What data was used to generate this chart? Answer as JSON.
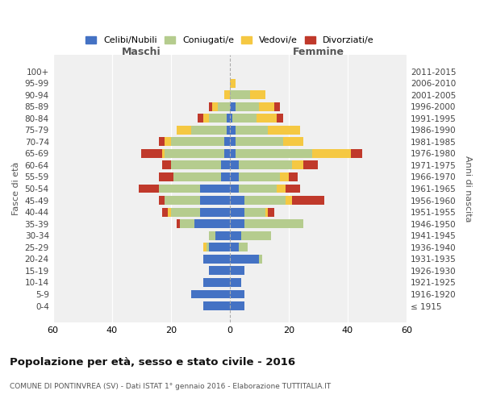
{
  "age_groups": [
    "100+",
    "95-99",
    "90-94",
    "85-89",
    "80-84",
    "75-79",
    "70-74",
    "65-69",
    "60-64",
    "55-59",
    "50-54",
    "45-49",
    "40-44",
    "35-39",
    "30-34",
    "25-29",
    "20-24",
    "15-19",
    "10-14",
    "5-9",
    "0-4"
  ],
  "birth_years": [
    "≤ 1915",
    "1916-1920",
    "1921-1925",
    "1926-1930",
    "1931-1935",
    "1936-1940",
    "1941-1945",
    "1946-1950",
    "1951-1955",
    "1956-1960",
    "1961-1965",
    "1966-1970",
    "1971-1975",
    "1976-1980",
    "1981-1985",
    "1986-1990",
    "1991-1995",
    "1996-2000",
    "2001-2005",
    "2006-2010",
    "2011-2015"
  ],
  "colors": {
    "celibe": "#4472c4",
    "coniugato": "#b5cc8e",
    "vedovo": "#f5c842",
    "divorziato": "#c0392b"
  },
  "maschi": {
    "celibe": [
      0,
      0,
      0,
      0,
      1,
      1,
      2,
      2,
      3,
      3,
      10,
      10,
      10,
      12,
      5,
      7,
      9,
      7,
      9,
      13,
      9
    ],
    "coniugato": [
      0,
      0,
      0,
      4,
      6,
      12,
      18,
      20,
      17,
      16,
      14,
      12,
      10,
      5,
      2,
      1,
      0,
      0,
      0,
      0,
      0
    ],
    "vedovo": [
      0,
      0,
      2,
      2,
      2,
      5,
      2,
      1,
      0,
      0,
      0,
      0,
      1,
      0,
      0,
      1,
      0,
      0,
      0,
      0,
      0
    ],
    "divorziato": [
      0,
      0,
      0,
      1,
      2,
      0,
      2,
      7,
      3,
      5,
      7,
      2,
      2,
      1,
      0,
      0,
      0,
      0,
      0,
      0,
      0
    ]
  },
  "femmine": {
    "nubile": [
      0,
      0,
      0,
      2,
      1,
      2,
      2,
      2,
      3,
      3,
      3,
      5,
      5,
      5,
      4,
      3,
      10,
      5,
      4,
      5,
      5
    ],
    "coniugata": [
      0,
      0,
      7,
      8,
      8,
      11,
      16,
      26,
      18,
      14,
      13,
      14,
      7,
      20,
      10,
      3,
      1,
      0,
      0,
      0,
      0
    ],
    "vedova": [
      0,
      2,
      5,
      5,
      7,
      11,
      7,
      13,
      4,
      3,
      3,
      2,
      1,
      0,
      0,
      0,
      0,
      0,
      0,
      0,
      0
    ],
    "divorziata": [
      0,
      0,
      0,
      2,
      2,
      0,
      0,
      4,
      5,
      3,
      5,
      11,
      2,
      0,
      0,
      0,
      0,
      0,
      0,
      0,
      0
    ]
  },
  "xlim": 60,
  "title": "Popolazione per età, sesso e stato civile - 2016",
  "subtitle": "COMUNE DI PONTINVREA (SV) - Dati ISTAT 1° gennaio 2016 - Elaborazione TUTTITALIA.IT",
  "ylabel_left": "Fasce di età",
  "ylabel_right": "Anni di nascita",
  "xlabel_maschi": "Maschi",
  "xlabel_femmine": "Femmine",
  "legend_labels": [
    "Celibi/Nubili",
    "Coniugati/e",
    "Vedovi/e",
    "Divorziati/e"
  ],
  "background_color": "#f0f0f0"
}
